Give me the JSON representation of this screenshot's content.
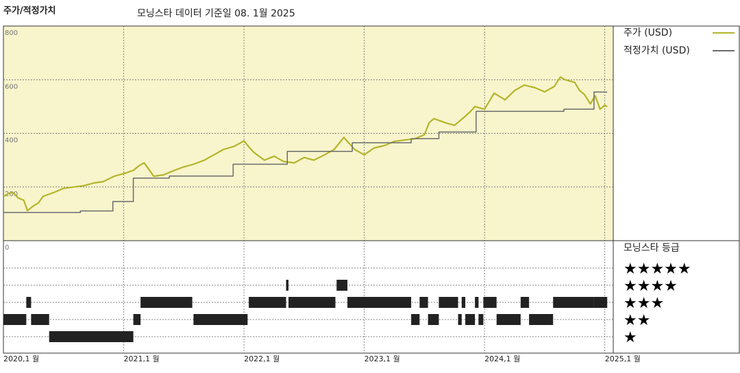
{
  "chart_data": {
    "type": "line",
    "title": "주가/적정가치",
    "subtitle": "모닝스타 데이터 기준일 08. 1월 2025",
    "xlim": [
      2020,
      2025.07
    ],
    "xticks": [
      {
        "value": 2020,
        "label": "2020,1 월"
      },
      {
        "value": 2021,
        "label": "2021,1 월"
      },
      {
        "value": 2022,
        "label": "2022,1 월"
      },
      {
        "value": 2023,
        "label": "2023,1 월"
      },
      {
        "value": 2024,
        "label": "2024,1 월"
      },
      {
        "value": 2025,
        "label": "2025,1 월"
      }
    ],
    "ylim": [
      0,
      800
    ],
    "yticks": [
      0,
      200,
      400,
      600,
      800
    ],
    "grid": true,
    "legend": "right",
    "series": [
      {
        "name": "주가 (USD)",
        "color": "#b3b52a",
        "x": [
          2020.0,
          2020.04,
          2020.08,
          2020.12,
          2020.17,
          2020.2,
          2020.25,
          2020.29,
          2020.33,
          2020.42,
          2020.5,
          2020.58,
          2020.67,
          2020.75,
          2020.83,
          2020.92,
          2021.0,
          2021.08,
          2021.13,
          2021.17,
          2021.21,
          2021.25,
          2021.33,
          2021.42,
          2021.5,
          2021.58,
          2021.67,
          2021.75,
          2021.83,
          2021.92,
          2022.0,
          2022.04,
          2022.08,
          2022.17,
          2022.25,
          2022.33,
          2022.42,
          2022.5,
          2022.58,
          2022.67,
          2022.75,
          2022.83,
          2022.88,
          2022.92,
          2023.0,
          2023.08,
          2023.17,
          2023.25,
          2023.33,
          2023.42,
          2023.5,
          2023.54,
          2023.58,
          2023.67,
          2023.75,
          2023.83,
          2023.88,
          2023.92,
          2024.0,
          2024.04,
          2024.08,
          2024.17,
          2024.25,
          2024.33,
          2024.42,
          2024.5,
          2024.58,
          2024.63,
          2024.67,
          2024.75,
          2024.79,
          2024.83,
          2024.88,
          2024.92,
          2024.96,
          2025.0,
          2025.02
        ],
        "values": [
          165,
          175,
          180,
          160,
          150,
          112,
          130,
          140,
          165,
          180,
          195,
          200,
          205,
          215,
          220,
          240,
          250,
          262,
          280,
          290,
          265,
          240,
          245,
          262,
          275,
          285,
          300,
          320,
          340,
          352,
          372,
          350,
          330,
          300,
          315,
          295,
          290,
          310,
          300,
          320,
          340,
          385,
          360,
          340,
          320,
          345,
          355,
          370,
          375,
          380,
          395,
          440,
          455,
          440,
          430,
          460,
          480,
          500,
          490,
          520,
          550,
          525,
          560,
          580,
          570,
          555,
          575,
          610,
          600,
          590,
          560,
          545,
          510,
          540,
          490,
          505,
          500
        ]
      },
      {
        "name": "적정가치 (USD)",
        "color": "#6b6b6b",
        "x": [
          2020.0,
          2020.64,
          2020.64,
          2020.91,
          2020.91,
          2021.08,
          2021.08,
          2021.38,
          2021.38,
          2021.91,
          2021.91,
          2022.36,
          2022.36,
          2022.9,
          2022.9,
          2023.39,
          2023.39,
          2023.62,
          2023.62,
          2023.93,
          2023.93,
          2024.66,
          2024.66,
          2024.91,
          2024.91,
          2025.02
        ],
        "values": [
          105,
          105,
          111,
          111,
          146,
          146,
          233,
          233,
          241,
          241,
          285,
          285,
          333,
          333,
          365,
          365,
          380,
          380,
          405,
          405,
          482,
          482,
          490,
          490,
          554,
          554
        ]
      }
    ],
    "rating": {
      "title": "모닝스타 등급",
      "labels": [
        "★★★★★",
        "★★★★",
        "★★★",
        "★★",
        "★"
      ],
      "start": [
        2020.0,
        2020.19,
        2020.23,
        2020.38,
        2021.08,
        2021.14,
        2021.58,
        2022.04,
        2022.35,
        2022.37,
        2022.77,
        2022.86,
        2023.39,
        2023.46,
        2023.53,
        2023.62,
        2023.78,
        2023.81,
        2023.84,
        2023.92,
        2023.95,
        2023.99,
        2024.1,
        2024.3,
        2024.37,
        2024.57,
        2024.91
      ],
      "end": [
        2020.19,
        2020.23,
        2020.38,
        2021.08,
        2021.14,
        2021.57,
        2022.03,
        2022.35,
        2022.37,
        2022.76,
        2022.86,
        2023.39,
        2023.46,
        2023.53,
        2023.62,
        2023.78,
        2023.81,
        2023.84,
        2023.92,
        2023.95,
        2023.99,
        2024.1,
        2024.3,
        2024.37,
        2024.57,
        2024.91,
        2025.02
      ],
      "stars": [
        2,
        3,
        2,
        1,
        2,
        3,
        2,
        3,
        4,
        3,
        4,
        3,
        2,
        3,
        2,
        3,
        2,
        3,
        2,
        3,
        2,
        3,
        2,
        3,
        2,
        3,
        3
      ]
    }
  }
}
